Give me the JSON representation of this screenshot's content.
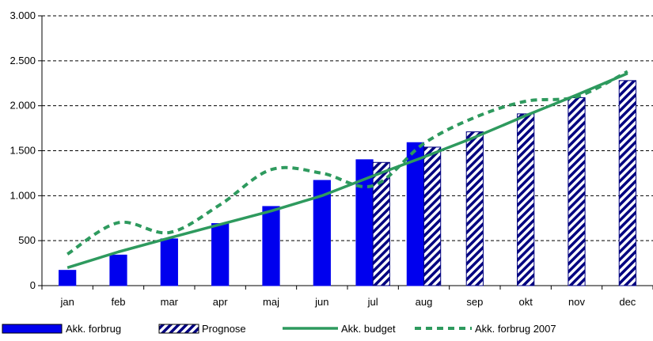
{
  "chart_data": {
    "type": "bar",
    "categories": [
      "jan",
      "feb",
      "mar",
      "apr",
      "maj",
      "jun",
      "jul",
      "aug",
      "sep",
      "okt",
      "nov",
      "dec"
    ],
    "ylim": [
      0,
      3000
    ],
    "yticks": [
      0,
      500,
      1000,
      1500,
      2000,
      2500,
      3000
    ],
    "ytick_labels": [
      "0",
      "500",
      "1.000",
      "1.500",
      "2.000",
      "2.500",
      "3.000"
    ],
    "grid": "horizontal dashed",
    "legend_position": "bottom",
    "series": [
      {
        "name": "Akk. forbrug",
        "kind": "bar",
        "color": "#0000ee",
        "values": [
          170,
          340,
          520,
          690,
          880,
          1170,
          1400,
          1590,
          null,
          null,
          null,
          null
        ]
      },
      {
        "name": "Prognose",
        "kind": "bar-hatched",
        "color": "#000080",
        "values": [
          null,
          null,
          null,
          null,
          null,
          null,
          1370,
          1540,
          1710,
          1910,
          2090,
          2280
        ]
      },
      {
        "name": "Akk. budget",
        "kind": "line",
        "color": "#2e9a5e",
        "values": [
          200,
          375,
          530,
          680,
          830,
          1000,
          1220,
          1430,
          1650,
          1890,
          2120,
          2360
        ]
      },
      {
        "name": "Akk. forbrug 2007",
        "kind": "dashed-line",
        "color": "#2e9a5e",
        "values": [
          350,
          700,
          590,
          900,
          1290,
          1250,
          1110,
          1580,
          1870,
          2050,
          2100,
          2380
        ]
      }
    ]
  }
}
